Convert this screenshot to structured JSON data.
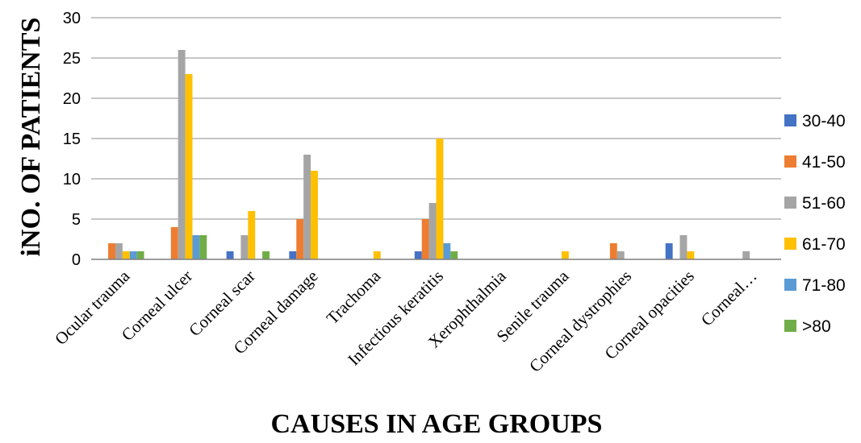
{
  "chart_data": {
    "type": "bar",
    "title": "",
    "xlabel": "CAUSES IN AGE GROUPS",
    "ylabel": "iNO. OF PATIENTS",
    "ylim": [
      0,
      30
    ],
    "yticks": [
      "0",
      "5",
      "10",
      "15",
      "20",
      "25",
      "30"
    ],
    "grid": true,
    "legend_position": "right",
    "categories": [
      "Ocular trauma",
      "Corneal ulcer",
      "Corneal scar",
      "Corneal damage",
      "Trachoma",
      "Infectious keratitis",
      "Xerophthalmia",
      "Senile trauma",
      "Corneal dystrophies",
      "Corneal opacities",
      "Corneal…"
    ],
    "series": [
      {
        "name": "30-40",
        "color": "#4472C4",
        "values": [
          0,
          0,
          1,
          1,
          0,
          1,
          0,
          0,
          0,
          2,
          0
        ]
      },
      {
        "name": "41-50",
        "color": "#ED7D31",
        "values": [
          2,
          4,
          0,
          5,
          0,
          5,
          0,
          0,
          2,
          0,
          0
        ]
      },
      {
        "name": "51-60",
        "color": "#A5A5A5",
        "values": [
          2,
          26,
          3,
          13,
          0,
          7,
          0,
          0,
          1,
          3,
          1
        ]
      },
      {
        "name": "61-70",
        "color": "#FFC000",
        "values": [
          1,
          23,
          6,
          11,
          1,
          15,
          0,
          1,
          0,
          1,
          0
        ]
      },
      {
        "name": "71-80",
        "color": "#5B9BD5",
        "values": [
          1,
          3,
          0,
          0,
          0,
          2,
          0,
          0,
          0,
          0,
          0
        ]
      },
      {
        "name": ">80",
        "color": "#70AD47",
        "values": [
          1,
          3,
          1,
          0,
          0,
          1,
          0,
          0,
          0,
          0,
          0
        ]
      }
    ]
  }
}
